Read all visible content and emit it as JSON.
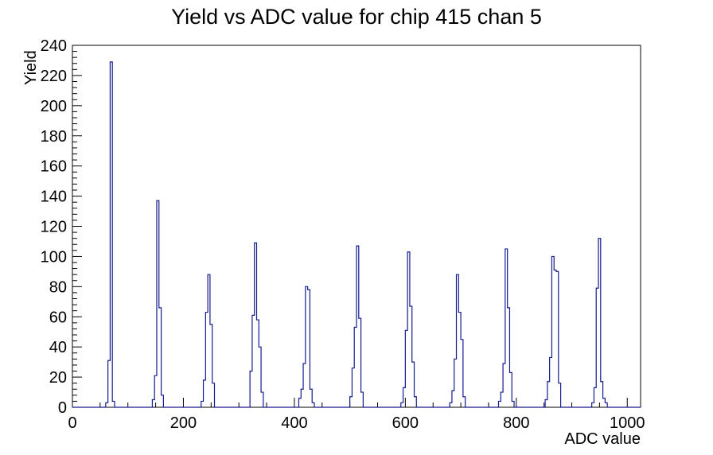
{
  "title": "Yield vs ADC value for chip 415 chan 5",
  "chart_data": {
    "type": "histogram-step",
    "title": "Yield vs ADC value for chip 415 chan 5",
    "xlabel": "ADC value",
    "ylabel": "Yield",
    "xlim": [
      0,
      1024
    ],
    "ylim": [
      0,
      240
    ],
    "grid": false,
    "legend": "none",
    "x_major_ticks": [
      0,
      200,
      400,
      600,
      800,
      1000
    ],
    "x_minor_step": 50,
    "y_major_step": 20,
    "y_minor_step": 4,
    "bin_width": 4,
    "line_color": "#131b8f",
    "axis_color": "#000000",
    "bins": [
      [
        60,
        3
      ],
      [
        64,
        31
      ],
      [
        68,
        229
      ],
      [
        72,
        4
      ],
      [
        144,
        5
      ],
      [
        148,
        21
      ],
      [
        152,
        137
      ],
      [
        156,
        66
      ],
      [
        160,
        8
      ],
      [
        232,
        4
      ],
      [
        236,
        18
      ],
      [
        240,
        63
      ],
      [
        244,
        88
      ],
      [
        248,
        55
      ],
      [
        252,
        16
      ],
      [
        320,
        24
      ],
      [
        324,
        61
      ],
      [
        328,
        109
      ],
      [
        332,
        58
      ],
      [
        336,
        40
      ],
      [
        340,
        10
      ],
      [
        408,
        6
      ],
      [
        412,
        12
      ],
      [
        416,
        29
      ],
      [
        420,
        80
      ],
      [
        424,
        78
      ],
      [
        428,
        12
      ],
      [
        432,
        3
      ],
      [
        500,
        7
      ],
      [
        504,
        26
      ],
      [
        508,
        53
      ],
      [
        512,
        107
      ],
      [
        516,
        59
      ],
      [
        520,
        10
      ],
      [
        592,
        3
      ],
      [
        596,
        13
      ],
      [
        600,
        51
      ],
      [
        604,
        103
      ],
      [
        608,
        67
      ],
      [
        612,
        30
      ],
      [
        616,
        7
      ],
      [
        680,
        3
      ],
      [
        684,
        11
      ],
      [
        688,
        32
      ],
      [
        692,
        88
      ],
      [
        696,
        63
      ],
      [
        700,
        45
      ],
      [
        704,
        7
      ],
      [
        768,
        4
      ],
      [
        772,
        10
      ],
      [
        776,
        29
      ],
      [
        780,
        105
      ],
      [
        784,
        66
      ],
      [
        788,
        23
      ],
      [
        792,
        4
      ],
      [
        852,
        5
      ],
      [
        856,
        17
      ],
      [
        860,
        33
      ],
      [
        864,
        100
      ],
      [
        868,
        91
      ],
      [
        872,
        90
      ],
      [
        876,
        16
      ],
      [
        936,
        3
      ],
      [
        940,
        13
      ],
      [
        944,
        79
      ],
      [
        948,
        112
      ],
      [
        952,
        17
      ],
      [
        956,
        6
      ],
      [
        960,
        3
      ]
    ]
  }
}
